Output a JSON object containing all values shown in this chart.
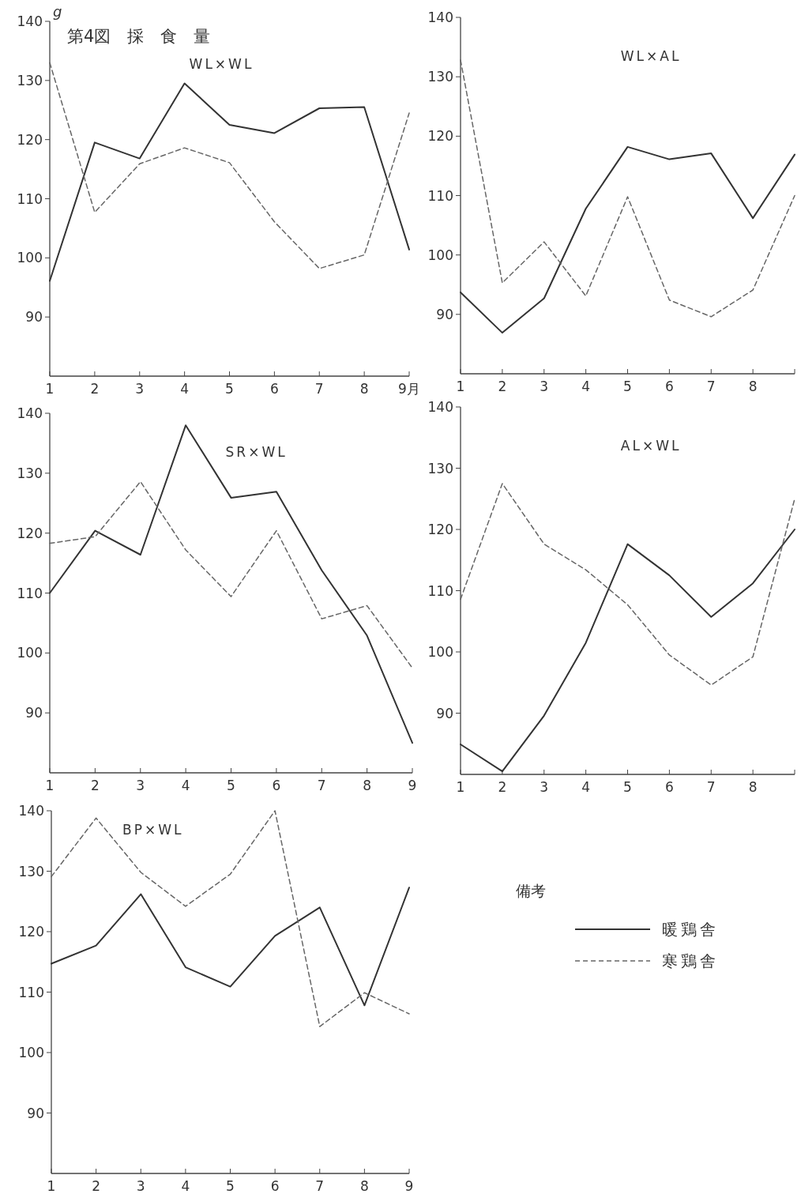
{
  "chart_data": [
    {
      "type": "line",
      "title": "第4図　採　食　量",
      "subtitle": "WL×WL",
      "ylabel": "g",
      "categories": [
        "1",
        "2",
        "3",
        "4",
        "5",
        "6",
        "7",
        "8",
        "9月"
      ],
      "ylim": [
        80,
        140
      ],
      "yticks": [
        90,
        100,
        110,
        120,
        130,
        140
      ],
      "grid": false,
      "legend": false,
      "marker": "none",
      "series": [
        {
          "color": "#333333",
          "line_style": "solid",
          "values": [
            96.1,
            119.5,
            116.8,
            129.5,
            122.5,
            121.1,
            125.3,
            125.5,
            101.4
          ]
        },
        {
          "color": "#666666",
          "line_style": "dashed",
          "values": [
            133,
            107.7,
            115.9,
            118.6,
            116.1,
            106.1,
            98.2,
            100.5,
            124.5
          ]
        }
      ]
    },
    {
      "type": "line",
      "title": "WL×AL",
      "categories": [
        "1",
        "2",
        "3",
        "4",
        "5",
        "6",
        "7",
        "8",
        null
      ],
      "ylim": [
        80,
        140
      ],
      "yticks": [
        90,
        100,
        110,
        120,
        130,
        140
      ],
      "grid": false,
      "legend": false,
      "marker": "none",
      "series": [
        {
          "color": "#333333",
          "line_style": "solid",
          "values": [
            93.7,
            86.9,
            92.7,
            107.8,
            118.2,
            116.1,
            117.1,
            106.2,
            116.9
          ]
        },
        {
          "color": "#666666",
          "line_style": "dashed",
          "values": [
            132.8,
            95.3,
            102.2,
            93.1,
            109.8,
            92.4,
            89.6,
            94.1,
            110
          ]
        }
      ]
    },
    {
      "type": "line",
      "title": "SR×WL",
      "categories": [
        "1",
        "2",
        "3",
        "4",
        "5",
        "6",
        "7",
        "8",
        "9"
      ],
      "ylim": [
        80,
        140
      ],
      "yticks": [
        90,
        100,
        110,
        120,
        130,
        140
      ],
      "grid": false,
      "legend": false,
      "marker": "none",
      "series": [
        {
          "color": "#333333",
          "line_style": "solid",
          "values": [
            110,
            120.4,
            116.4,
            138,
            125.9,
            126.9,
            113.8,
            102.9,
            85
          ]
        },
        {
          "color": "#666666",
          "line_style": "dashed",
          "values": [
            118.3,
            119.4,
            128.6,
            117.2,
            109.4,
            120.4,
            105.7,
            107.9,
            97.5
          ]
        }
      ]
    },
    {
      "type": "line",
      "title": "AL×WL",
      "categories": [
        "1",
        "2",
        "3",
        "4",
        "5",
        "6",
        "7",
        "8",
        null
      ],
      "ylim": [
        80,
        140
      ],
      "yticks": [
        90,
        100,
        110,
        120,
        130,
        140
      ],
      "grid": false,
      "legend": false,
      "marker": "none",
      "series": [
        {
          "color": "#333333",
          "line_style": "solid",
          "values": [
            84.9,
            80.5,
            89.6,
            101.5,
            117.6,
            112.5,
            105.7,
            111.2,
            120
          ]
        },
        {
          "color": "#666666",
          "line_style": "dashed",
          "values": [
            108.6,
            127.5,
            117.6,
            113.4,
            107.7,
            99.5,
            94.6,
            99.2,
            125
          ]
        }
      ]
    },
    {
      "type": "line",
      "title": "BP×WL",
      "legend_title": "備考",
      "categories": [
        "1",
        "2",
        "3",
        "4",
        "5",
        "6",
        "7",
        "8",
        "9"
      ],
      "ylim": [
        80,
        140
      ],
      "yticks": [
        90,
        100,
        110,
        120,
        130,
        140
      ],
      "grid": false,
      "legend": "right",
      "marker": "none",
      "series": [
        {
          "name": "暖鶏舎",
          "color": "#333333",
          "line_style": "solid",
          "values": [
            114.7,
            117.7,
            126.2,
            114.1,
            110.9,
            119.3,
            124,
            107.8,
            127.3
          ]
        },
        {
          "name": "寒鶏舎",
          "color": "#666666",
          "line_style": "dashed",
          "values": [
            129.1,
            138.8,
            129.8,
            124.2,
            129.5,
            140,
            104.3,
            109.9,
            106.4
          ]
        }
      ]
    }
  ]
}
